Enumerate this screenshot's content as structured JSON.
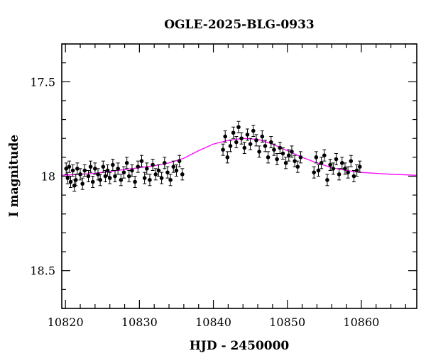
{
  "chart_data": {
    "type": "scatter",
    "title": "OGLE-2025-BLG-0933",
    "xlabel": "HJD - 2450000",
    "ylabel": "I magnitude",
    "xlim": [
      10819.5,
      10867.5
    ],
    "ylim": [
      18.7,
      17.3
    ],
    "y_inverted": true,
    "x_ticks": [
      10820,
      10830,
      10840,
      10850,
      10860
    ],
    "y_ticks": [
      17.5,
      18,
      18.5
    ],
    "x_tick_labels": [
      "10820",
      "10830",
      "10840",
      "10850",
      "10860"
    ],
    "y_tick_labels": [
      "17.5",
      "18",
      "18.5"
    ],
    "grid": false,
    "colors": {
      "points": "#000000",
      "model": "#ff00ff"
    },
    "model": {
      "name": "",
      "x": [
        10819.5,
        10822,
        10824,
        10826,
        10828,
        10830,
        10832,
        10834,
        10836,
        10838,
        10840,
        10842,
        10844,
        10846,
        10848,
        10850,
        10852,
        10854,
        10856,
        10858,
        10860,
        10862,
        10864,
        10867.5
      ],
      "y": [
        17.995,
        17.99,
        17.985,
        17.975,
        17.965,
        17.955,
        17.945,
        17.93,
        17.905,
        17.865,
        17.83,
        17.81,
        17.8,
        17.805,
        17.83,
        17.865,
        17.9,
        17.93,
        17.955,
        17.97,
        17.98,
        17.985,
        17.99,
        17.995
      ]
    },
    "series": [
      {
        "name": "",
        "x": [
          10820.1,
          10820.3,
          10820.5,
          10820.7,
          10821.0,
          10821.2,
          10821.4,
          10821.6,
          10822.0,
          10822.3,
          10822.6,
          10823.1,
          10823.4,
          10823.7,
          10824.0,
          10824.4,
          10824.7,
          10825.1,
          10825.4,
          10825.7,
          10826.0,
          10826.4,
          10826.7,
          10827.1,
          10827.5,
          10827.9,
          10828.3,
          10828.6,
          10829.0,
          10829.4,
          10829.8,
          10830.3,
          10830.7,
          10831.0,
          10831.4,
          10831.8,
          10832.2,
          10832.6,
          10833.0,
          10833.4,
          10833.8,
          10834.2,
          10834.6,
          10835.0,
          10835.4,
          10835.8,
          10841.3,
          10841.6,
          10841.9,
          10842.3,
          10842.7,
          10843.1,
          10843.4,
          10843.8,
          10844.2,
          10844.6,
          10845.0,
          10845.4,
          10845.8,
          10846.2,
          10846.6,
          10847.0,
          10847.4,
          10847.8,
          10848.2,
          10848.6,
          10849.0,
          10849.4,
          10849.8,
          10850.2,
          10850.6,
          10851.0,
          10851.4,
          10851.8,
          10853.6,
          10853.9,
          10854.2,
          10854.6,
          10855.0,
          10855.4,
          10855.8,
          10856.2,
          10856.6,
          10857.0,
          10857.4,
          10857.8,
          10858.2,
          10858.6,
          10859.0,
          10859.4,
          10859.8
        ],
        "y": [
          17.96,
          18.01,
          17.95,
          18.03,
          17.97,
          18.05,
          18.02,
          17.96,
          17.99,
          18.04,
          17.97,
          18.0,
          17.95,
          18.03,
          17.96,
          17.99,
          18.02,
          17.95,
          18.0,
          17.97,
          18.01,
          17.94,
          18.0,
          17.96,
          18.02,
          17.98,
          17.93,
          18.0,
          17.97,
          18.03,
          17.95,
          17.92,
          18.01,
          17.96,
          18.02,
          17.94,
          17.99,
          17.97,
          18.01,
          17.93,
          17.98,
          18.02,
          17.95,
          17.97,
          17.92,
          17.99,
          17.86,
          17.79,
          17.9,
          17.84,
          17.77,
          17.82,
          17.74,
          17.8,
          17.85,
          17.78,
          17.83,
          17.76,
          17.81,
          17.87,
          17.79,
          17.84,
          17.9,
          17.82,
          17.86,
          17.91,
          17.85,
          17.88,
          17.93,
          17.89,
          17.87,
          17.92,
          17.95,
          17.9,
          17.98,
          17.9,
          17.97,
          17.93,
          17.89,
          18.02,
          17.94,
          17.96,
          17.91,
          17.99,
          17.93,
          17.96,
          17.98,
          17.92,
          18.0,
          17.97,
          17.95
        ]
      }
    ],
    "error_bar": 0.03,
    "legend": "none"
  }
}
